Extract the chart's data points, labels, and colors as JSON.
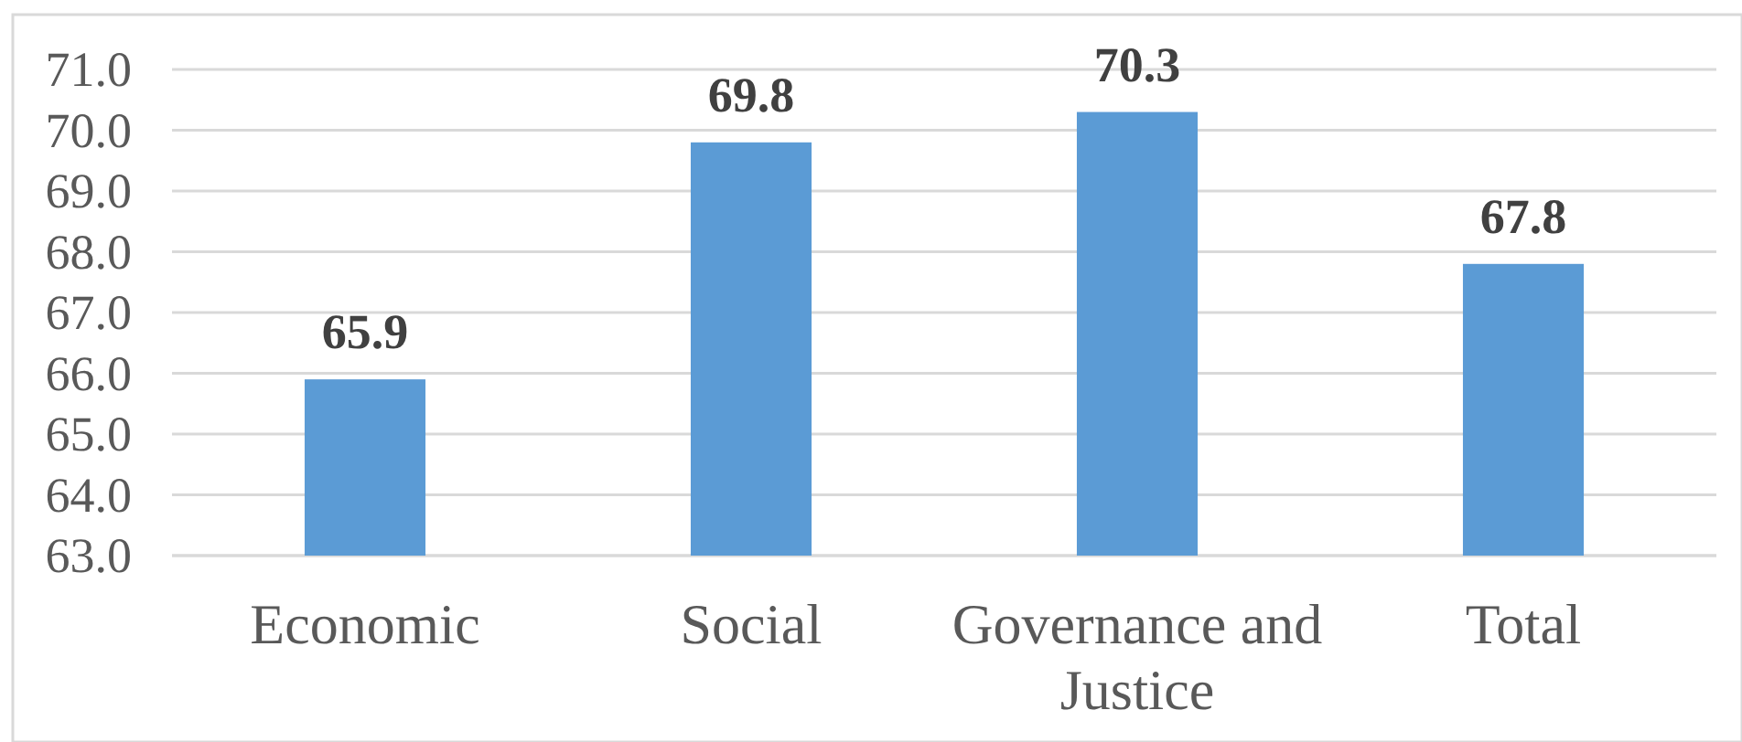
{
  "chart_data": {
    "type": "bar",
    "categories": [
      "Economic",
      "Social",
      "Governance and Justice",
      "Total"
    ],
    "values": [
      65.9,
      69.8,
      70.3,
      67.8
    ],
    "color": "#5b9bd5",
    "ylim": [
      63,
      71
    ],
    "yticks": [
      {
        "value": 63,
        "label": "63.0"
      },
      {
        "value": 64,
        "label": "64.0"
      },
      {
        "value": 65,
        "label": "65.0"
      },
      {
        "value": 66,
        "label": "66.0"
      },
      {
        "value": 67,
        "label": "67.0"
      },
      {
        "value": 68,
        "label": "68.0"
      },
      {
        "value": 69,
        "label": "69.0"
      },
      {
        "value": 70,
        "label": "70.0"
      },
      {
        "value": 71,
        "label": "71.0"
      }
    ],
    "grid": "y",
    "data_labels": true
  }
}
